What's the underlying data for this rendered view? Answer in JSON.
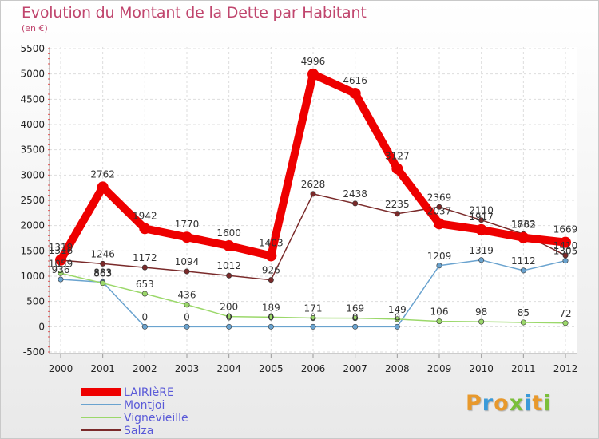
{
  "title": "Evolution du Montant de la Dette par Habitant",
  "subtitle": "(en €)",
  "logo": {
    "text": "Proxiti",
    "colors": [
      "#e8992c",
      "#3a9ad9",
      "#e8992c",
      "#7bbf3a",
      "#3a9ad9",
      "#e8992c",
      "#7bbf3a"
    ]
  },
  "chart_data": {
    "type": "line",
    "x": [
      "2000",
      "2001",
      "2002",
      "2003",
      "2004",
      "2005",
      "2006",
      "2007",
      "2008",
      "2009",
      "2010",
      "2011",
      "2012"
    ],
    "y_ticks": [
      "-500",
      "0",
      "500",
      "1000",
      "1500",
      "2000",
      "2500",
      "3000",
      "3500",
      "4000",
      "4500",
      "5000",
      "5500"
    ],
    "ylim": [
      -500,
      5500
    ],
    "grid": true,
    "legend": "bottom-left",
    "series": [
      {
        "name": "LAIRIèRE",
        "color": "#ee0000",
        "values": [
          1319,
          2762,
          1942,
          1770,
          1600,
          1403,
          4996,
          4616,
          3127,
          2037,
          1917,
          1762,
          1669
        ],
        "labels": [
          "1319",
          "2762",
          "1942",
          "1770",
          "1600",
          "1403",
          "4996",
          "4616",
          "3127",
          "2037",
          "1917",
          "1762",
          "1669"
        ]
      },
      {
        "name": "Montjoi",
        "color": "#6aa3cf",
        "values": [
          936,
          883,
          0,
          0,
          0,
          0,
          0,
          0,
          0,
          1209,
          1319,
          1112,
          1305
        ],
        "labels": [
          "936",
          "883",
          "0",
          "0",
          "0",
          "0",
          "0",
          "0",
          "0",
          "1209",
          "1319",
          "1112",
          "1305"
        ]
      },
      {
        "name": "Vignevieille",
        "color": "#9bd86a",
        "values": [
          1059,
          863,
          653,
          436,
          200,
          189,
          171,
          169,
          149,
          106,
          98,
          85,
          72
        ],
        "labels": [
          "1059",
          "863",
          "653",
          "436",
          "200",
          "189",
          "171",
          "169",
          "149",
          "106",
          "98",
          "85",
          "72"
        ]
      },
      {
        "name": "Salza",
        "color": "#7a2a2a",
        "values": [
          1316,
          1246,
          1172,
          1094,
          1012,
          926,
          2628,
          2438,
          2235,
          2369,
          2110,
          1833,
          1410
        ],
        "labels": [
          "1316",
          "1246",
          "1172",
          "1094",
          "1012",
          "926",
          "2628",
          "2438",
          "2235",
          "2369",
          "2110",
          "1833",
          "1410"
        ]
      }
    ]
  }
}
